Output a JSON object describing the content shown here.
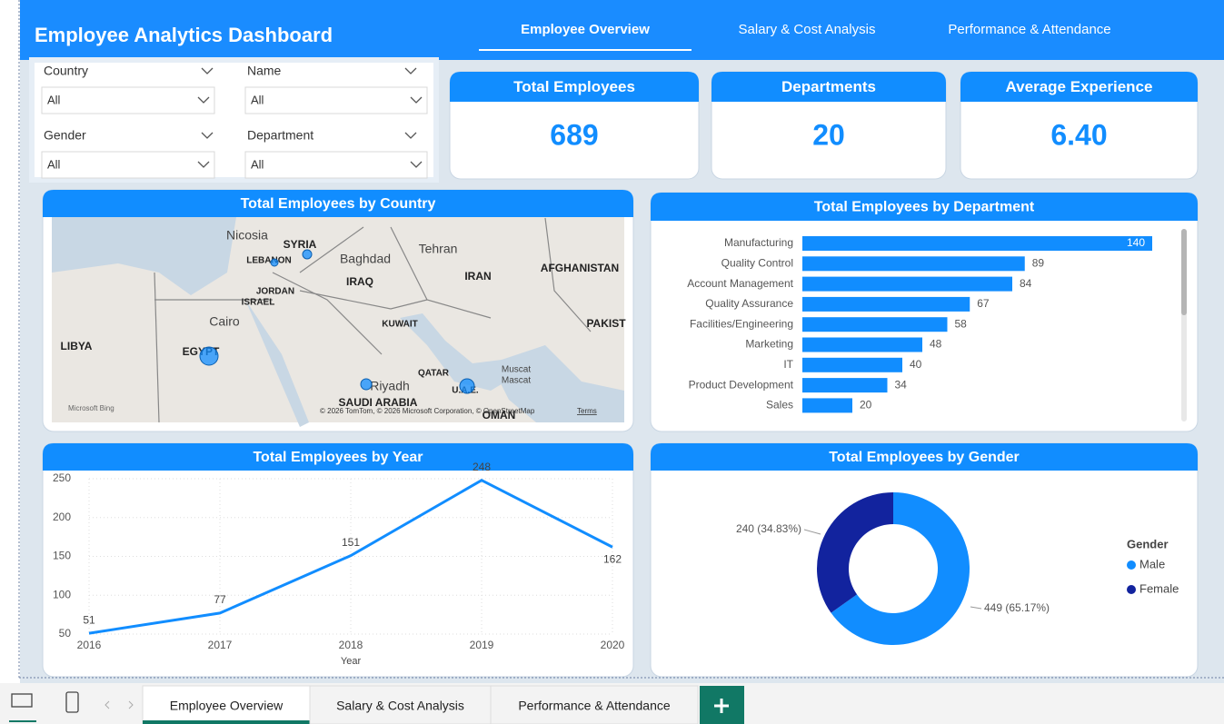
{
  "header": {
    "title": "Employee Analytics Dashboard",
    "tabs": [
      "Employee Overview",
      "Salary & Cost Analysis",
      "Performance & Attendance"
    ]
  },
  "filters": [
    {
      "label": "Country",
      "value": "All"
    },
    {
      "label": "Name",
      "value": "All"
    },
    {
      "label": "Gender",
      "value": "All"
    },
    {
      "label": "Department",
      "value": "All"
    }
  ],
  "kpis": [
    {
      "title": "Total Employees",
      "value": 689
    },
    {
      "title": "Departments",
      "value": 20
    },
    {
      "title": "Average Experience",
      "value": "6.40"
    }
  ],
  "map": {
    "title": "Total Employees by Country",
    "labels": [
      "Nicosia",
      "SYRIA",
      "LEBANON",
      "Baghdad",
      "Tehran",
      "IRAQ",
      "IRAN",
      "AFGHANISTAN",
      "JORDAN",
      "ISRAEL",
      "Cairo",
      "KUWAIT",
      "PAKIST",
      "LIBYA",
      "EGYPT",
      "QATAR",
      "Muscat",
      "Mascat",
      "Riyadh",
      "SAUDI ARABIA",
      "U.A.E.",
      "OMAN"
    ],
    "attribution": "© 2026 TomTom, © 2026 Microsoft Corporation, © OpenStreetMap",
    "terms": "Terms",
    "logo": "Microsoft Bing"
  },
  "chart_data": [
    {
      "type": "bar",
      "title": "Total Employees by Department",
      "orientation": "horizontal",
      "categories": [
        "Manufacturing",
        "Quality Control",
        "Account Management",
        "Quality Assurance",
        "Facilities/Engineering",
        "Marketing",
        "IT",
        "Product Development",
        "Sales"
      ],
      "values": [
        140,
        89,
        84,
        67,
        58,
        48,
        40,
        34,
        20
      ],
      "color": "#118dff"
    },
    {
      "type": "line",
      "title": "Total Employees by Year",
      "x_label": "Year",
      "categories": [
        "2016",
        "2017",
        "2018",
        "2019",
        "2020"
      ],
      "values": [
        51,
        77,
        151,
        248,
        162
      ],
      "ylim": [
        50,
        250
      ],
      "yticks": [
        50,
        100,
        150,
        200,
        250
      ],
      "grid": true,
      "color": "#118dff"
    },
    {
      "type": "pie",
      "title": "Total Employees by Gender",
      "donut": true,
      "legend_title": "Gender",
      "categories": [
        "Male",
        "Female"
      ],
      "values": [
        449,
        240
      ],
      "value_labels": [
        "449 (65.17%)",
        "240 (34.83%)"
      ],
      "colors": [
        "#118dff",
        "#12239e"
      ]
    }
  ],
  "bottom_tabs": [
    "Employee Overview",
    "Salary & Cost Analysis",
    "Performance & Attendance"
  ]
}
